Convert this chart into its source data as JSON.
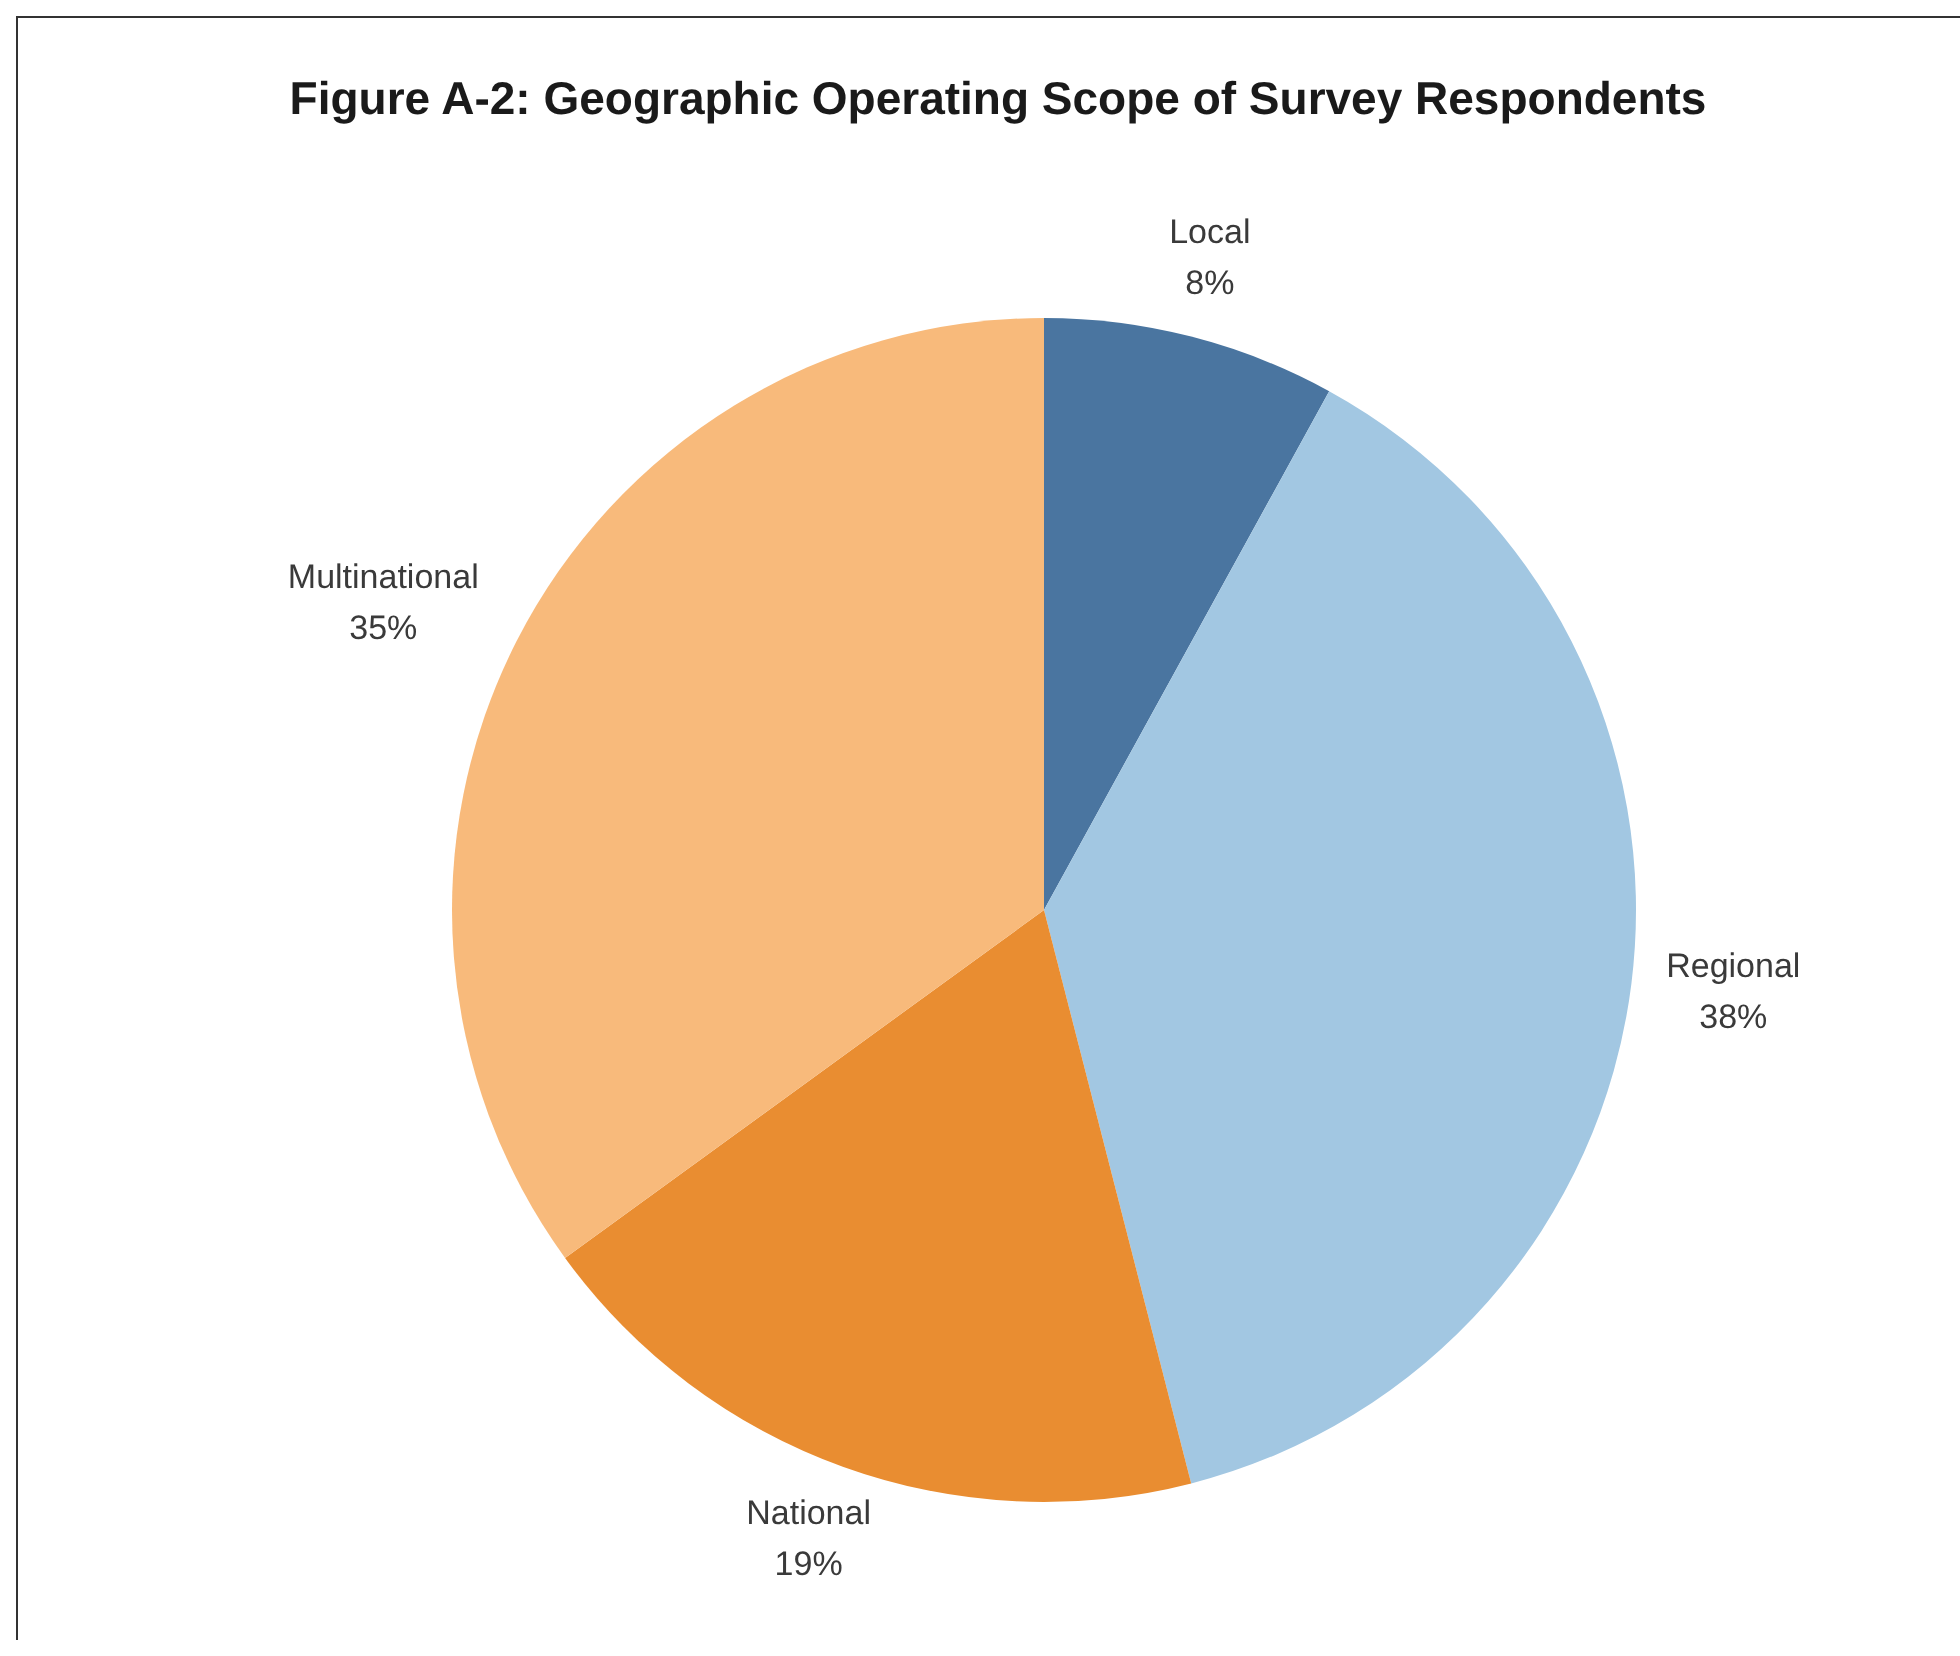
{
  "chart_data": {
    "type": "pie",
    "title": "Figure A-2: Geographic Operating Scope of Survey Respondents",
    "categories": [
      "Local",
      "Regional",
      "National",
      "Multinational"
    ],
    "values": [
      8,
      38,
      19,
      35
    ],
    "colors": [
      "#4a75a0",
      "#a2c7e2",
      "#e98d31",
      "#f8ba7b"
    ],
    "value_labels": [
      "8%",
      "38%",
      "19%",
      "35%"
    ]
  }
}
